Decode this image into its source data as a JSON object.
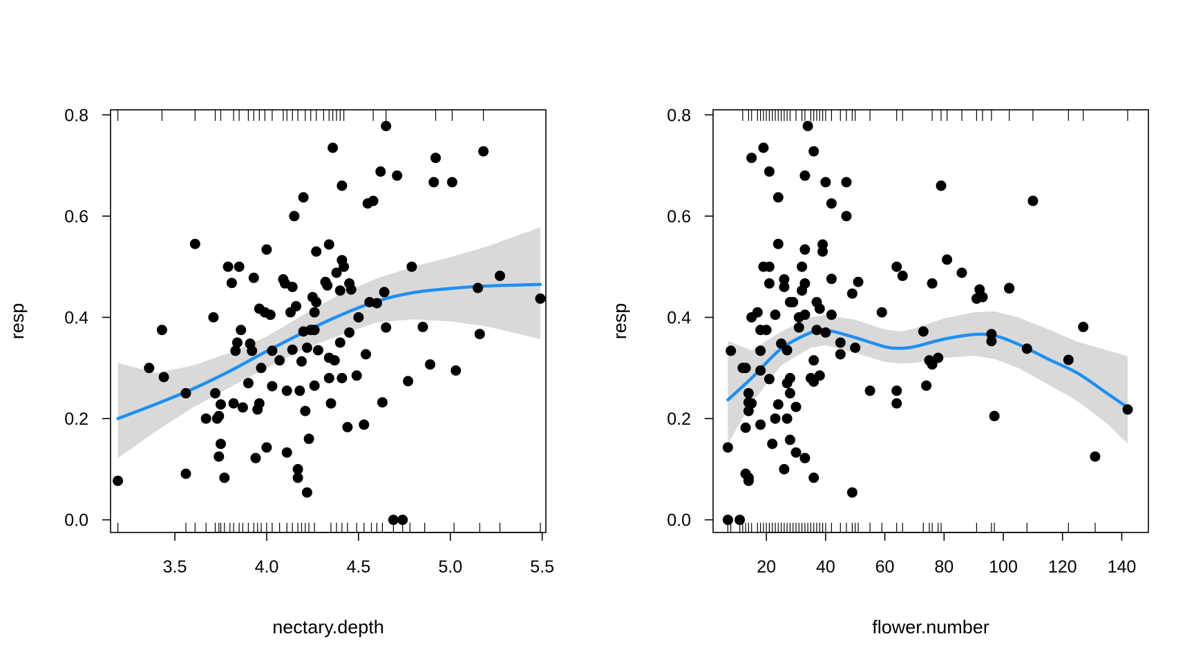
{
  "chart_data": [
    {
      "type": "scatter",
      "xlabel": "nectary.depth",
      "ylabel": "resp",
      "xlim": [
        3.15,
        5.52
      ],
      "ylim": [
        -0.025,
        0.81
      ],
      "xticks": [
        "3.5",
        "4.0",
        "4.5",
        "5.0",
        "5.5"
      ],
      "yticks": [
        "0.0",
        "0.2",
        "0.4",
        "0.6",
        "0.8"
      ],
      "grid": false,
      "legend": "none",
      "colors": {
        "points": "#000000",
        "smooth": "#1e8ff0",
        "band": "#d9d9d9"
      },
      "points": [
        [
          3.19,
          0.077
        ],
        [
          3.36,
          0.3
        ],
        [
          3.43,
          0.375
        ],
        [
          3.44,
          0.282
        ],
        [
          3.56,
          0.25
        ],
        [
          3.56,
          0.091
        ],
        [
          3.61,
          0.545
        ],
        [
          3.67,
          0.2
        ],
        [
          3.71,
          0.4
        ],
        [
          3.72,
          0.25
        ],
        [
          3.73,
          0.2
        ],
        [
          3.74,
          0.205
        ],
        [
          3.74,
          0.125
        ],
        [
          3.75,
          0.15
        ],
        [
          3.75,
          0.228
        ],
        [
          3.77,
          0.083
        ],
        [
          3.79,
          0.5
        ],
        [
          3.81,
          0.468
        ],
        [
          3.82,
          0.23
        ],
        [
          3.83,
          0.334
        ],
        [
          3.84,
          0.35
        ],
        [
          3.85,
          0.5
        ],
        [
          3.86,
          0.375
        ],
        [
          3.87,
          0.222
        ],
        [
          3.9,
          0.27
        ],
        [
          3.91,
          0.348
        ],
        [
          3.92,
          0.334
        ],
        [
          3.93,
          0.478
        ],
        [
          3.94,
          0.122
        ],
        [
          3.95,
          0.218
        ],
        [
          3.96,
          0.23
        ],
        [
          3.96,
          0.417
        ],
        [
          3.97,
          0.3
        ],
        [
          3.99,
          0.41
        ],
        [
          4.0,
          0.143
        ],
        [
          4.0,
          0.534
        ],
        [
          4.02,
          0.405
        ],
        [
          4.03,
          0.264
        ],
        [
          4.03,
          0.334
        ],
        [
          4.07,
          0.315
        ],
        [
          4.09,
          0.475
        ],
        [
          4.1,
          0.467
        ],
        [
          4.11,
          0.255
        ],
        [
          4.11,
          0.133
        ],
        [
          4.13,
          0.41
        ],
        [
          4.14,
          0.46
        ],
        [
          4.14,
          0.336
        ],
        [
          4.15,
          0.6
        ],
        [
          4.16,
          0.422
        ],
        [
          4.17,
          0.1
        ],
        [
          4.17,
          0.083
        ],
        [
          4.18,
          0.255
        ],
        [
          4.19,
          0.313
        ],
        [
          4.2,
          0.372
        ],
        [
          4.2,
          0.637
        ],
        [
          4.21,
          0.215
        ],
        [
          4.22,
          0.054
        ],
        [
          4.22,
          0.34
        ],
        [
          4.23,
          0.16
        ],
        [
          4.24,
          0.375
        ],
        [
          4.25,
          0.44
        ],
        [
          4.26,
          0.375
        ],
        [
          4.26,
          0.265
        ],
        [
          4.26,
          0.41
        ],
        [
          4.27,
          0.53
        ],
        [
          4.27,
          0.43
        ],
        [
          4.28,
          0.335
        ],
        [
          4.32,
          0.47
        ],
        [
          4.33,
          0.463
        ],
        [
          4.34,
          0.32
        ],
        [
          4.34,
          0.28
        ],
        [
          4.34,
          0.544
        ],
        [
          4.35,
          0.23
        ],
        [
          4.36,
          0.735
        ],
        [
          4.37,
          0.315
        ],
        [
          4.38,
          0.488
        ],
        [
          4.4,
          0.35
        ],
        [
          4.4,
          0.453
        ],
        [
          4.41,
          0.28
        ],
        [
          4.41,
          0.513
        ],
        [
          4.41,
          0.66
        ],
        [
          4.42,
          0.5
        ],
        [
          4.44,
          0.183
        ],
        [
          4.45,
          0.37
        ],
        [
          4.45,
          0.467
        ],
        [
          4.46,
          0.455
        ],
        [
          4.49,
          0.285
        ],
        [
          4.5,
          0.4
        ],
        [
          4.53,
          0.188
        ],
        [
          4.54,
          0.327
        ],
        [
          4.55,
          0.625
        ],
        [
          4.56,
          0.43
        ],
        [
          4.58,
          0.63
        ],
        [
          4.6,
          0.428
        ],
        [
          4.62,
          0.688
        ],
        [
          4.63,
          0.232
        ],
        [
          4.64,
          0.45
        ],
        [
          4.65,
          0.38
        ],
        [
          4.65,
          0.778
        ],
        [
          4.69,
          0.0
        ],
        [
          4.71,
          0.68
        ],
        [
          4.74,
          0.0
        ],
        [
          4.77,
          0.274
        ],
        [
          4.79,
          0.5
        ],
        [
          4.85,
          0.381
        ],
        [
          4.89,
          0.307
        ],
        [
          4.91,
          0.667
        ],
        [
          4.92,
          0.715
        ],
        [
          5.01,
          0.667
        ],
        [
          5.03,
          0.295
        ],
        [
          5.15,
          0.458
        ],
        [
          5.16,
          0.367
        ],
        [
          5.18,
          0.728
        ],
        [
          5.27,
          0.482
        ],
        [
          5.49,
          0.437
        ]
      ],
      "smooth": {
        "x": [
          3.19,
          3.4,
          3.6,
          3.8,
          4.0,
          4.2,
          4.4,
          4.6,
          4.8,
          5.0,
          5.2,
          5.49
        ],
        "y": [
          0.2,
          0.229,
          0.259,
          0.294,
          0.333,
          0.37,
          0.404,
          0.432,
          0.449,
          0.457,
          0.462,
          0.465
        ],
        "lower": [
          0.122,
          0.176,
          0.222,
          0.262,
          0.3,
          0.337,
          0.365,
          0.39,
          0.396,
          0.392,
          0.382,
          0.357
        ],
        "upper": [
          0.31,
          0.29,
          0.305,
          0.33,
          0.362,
          0.405,
          0.446,
          0.477,
          0.5,
          0.519,
          0.54,
          0.578
        ]
      },
      "rug_bottom": [
        3.19,
        3.56,
        3.61,
        3.67,
        3.72,
        3.74,
        3.75,
        3.77,
        3.8,
        3.82,
        3.85,
        3.87,
        3.9,
        3.93,
        3.95,
        3.97,
        4.0,
        4.03,
        4.07,
        4.11,
        4.14,
        4.17,
        4.19,
        4.21,
        4.23,
        4.26,
        4.35,
        4.38,
        4.41,
        4.44,
        4.49,
        4.53,
        4.57,
        4.6,
        4.63,
        4.69,
        4.74,
        4.78,
        4.86,
        5.02,
        5.16,
        5.27,
        5.49
      ],
      "rug_top": [
        3.19,
        3.43,
        3.61,
        3.72,
        3.75,
        3.82,
        3.85,
        3.9,
        3.93,
        3.96,
        3.99,
        4.03,
        4.09,
        4.11,
        4.14,
        4.17,
        4.21,
        4.24,
        4.27,
        4.31,
        4.34,
        4.36,
        4.38,
        4.4,
        4.42,
        4.58,
        4.65,
        4.92,
        5.01,
        5.18
      ]
    },
    {
      "type": "scatter",
      "xlabel": "flower.number",
      "ylabel": "resp",
      "xlim": [
        2,
        149
      ],
      "ylim": [
        -0.025,
        0.81
      ],
      "xticks": [
        "20",
        "40",
        "60",
        "80",
        "100",
        "120",
        "140"
      ],
      "yticks": [
        "0.0",
        "0.2",
        "0.4",
        "0.6",
        "0.8"
      ],
      "grid": false,
      "legend": "none",
      "colors": {
        "points": "#000000",
        "smooth": "#1e8ff0",
        "band": "#d9d9d9"
      },
      "points": [
        [
          7,
          0.143
        ],
        [
          7,
          0.0
        ],
        [
          8,
          0.334
        ],
        [
          11,
          0.0
        ],
        [
          12,
          0.3
        ],
        [
          13,
          0.3
        ],
        [
          13,
          0.182
        ],
        [
          13,
          0.091
        ],
        [
          14,
          0.083
        ],
        [
          14,
          0.077
        ],
        [
          14,
          0.215
        ],
        [
          14,
          0.232
        ],
        [
          14,
          0.25
        ],
        [
          15,
          0.715
        ],
        [
          15,
          0.4
        ],
        [
          15,
          0.23
        ],
        [
          17,
          0.41
        ],
        [
          18,
          0.295
        ],
        [
          18,
          0.188
        ],
        [
          18,
          0.334
        ],
        [
          18,
          0.375
        ],
        [
          19,
          0.735
        ],
        [
          19,
          0.5
        ],
        [
          20,
          0.375
        ],
        [
          21,
          0.5
        ],
        [
          21,
          0.467
        ],
        [
          21,
          0.278
        ],
        [
          21,
          0.688
        ],
        [
          22,
          0.15
        ],
        [
          23,
          0.405
        ],
        [
          23,
          0.2
        ],
        [
          24,
          0.545
        ],
        [
          24,
          0.637
        ],
        [
          24,
          0.228
        ],
        [
          25,
          0.348
        ],
        [
          26,
          0.475
        ],
        [
          26,
          0.46
        ],
        [
          26,
          0.1
        ],
        [
          27,
          0.27
        ],
        [
          27,
          0.2
        ],
        [
          27,
          0.335
        ],
        [
          28,
          0.28
        ],
        [
          28,
          0.25
        ],
        [
          28,
          0.43
        ],
        [
          28,
          0.158
        ],
        [
          29,
          0.43
        ],
        [
          30,
          0.133
        ],
        [
          30,
          0.223
        ],
        [
          31,
          0.4
        ],
        [
          31,
          0.38
        ],
        [
          32,
          0.5
        ],
        [
          32,
          0.453
        ],
        [
          33,
          0.467
        ],
        [
          33,
          0.534
        ],
        [
          33,
          0.68
        ],
        [
          33,
          0.122
        ],
        [
          33,
          0.405
        ],
        [
          34,
          0.778
        ],
        [
          35,
          0.28
        ],
        [
          36,
          0.273
        ],
        [
          36,
          0.315
        ],
        [
          36,
          0.728
        ],
        [
          36,
          0.083
        ],
        [
          37,
          0.43
        ],
        [
          37,
          0.375
        ],
        [
          38,
          0.285
        ],
        [
          38,
          0.417
        ],
        [
          39,
          0.544
        ],
        [
          39,
          0.53
        ],
        [
          40,
          0.667
        ],
        [
          40,
          0.37
        ],
        [
          42,
          0.625
        ],
        [
          42,
          0.476
        ],
        [
          42,
          0.405
        ],
        [
          45,
          0.35
        ],
        [
          45,
          0.327
        ],
        [
          47,
          0.6
        ],
        [
          47,
          0.667
        ],
        [
          49,
          0.447
        ],
        [
          49,
          0.054
        ],
        [
          50,
          0.34
        ],
        [
          51,
          0.47
        ],
        [
          55,
          0.255
        ],
        [
          59,
          0.41
        ],
        [
          64,
          0.5
        ],
        [
          64,
          0.255
        ],
        [
          64,
          0.23
        ],
        [
          66,
          0.482
        ],
        [
          73,
          0.372
        ],
        [
          74,
          0.265
        ],
        [
          75,
          0.315
        ],
        [
          76,
          0.307
        ],
        [
          76,
          0.467
        ],
        [
          78,
          0.32
        ],
        [
          79,
          0.66
        ],
        [
          81,
          0.514
        ],
        [
          86,
          0.488
        ],
        [
          91,
          0.437
        ],
        [
          92,
          0.455
        ],
        [
          93,
          0.44
        ],
        [
          96,
          0.353
        ],
        [
          96,
          0.367
        ],
        [
          97,
          0.205
        ],
        [
          102,
          0.458
        ],
        [
          102,
          0.457
        ],
        [
          108,
          0.338
        ],
        [
          110,
          0.63
        ],
        [
          122,
          0.316
        ],
        [
          127,
          0.381
        ],
        [
          131,
          0.125
        ],
        [
          142,
          0.218
        ]
      ],
      "smooth": {
        "x": [
          7,
          15,
          25,
          35,
          40,
          50,
          60,
          65,
          70,
          80,
          90,
          97,
          105,
          115,
          125,
          135,
          142
        ],
        "y": [
          0.237,
          0.28,
          0.338,
          0.37,
          0.375,
          0.36,
          0.342,
          0.339,
          0.342,
          0.357,
          0.366,
          0.364,
          0.347,
          0.318,
          0.29,
          0.25,
          0.222
        ],
        "lower": [
          0.15,
          0.23,
          0.305,
          0.34,
          0.345,
          0.33,
          0.312,
          0.309,
          0.31,
          0.32,
          0.324,
          0.318,
          0.3,
          0.268,
          0.235,
          0.19,
          0.15
        ],
        "upper": [
          0.353,
          0.335,
          0.372,
          0.4,
          0.405,
          0.395,
          0.376,
          0.372,
          0.378,
          0.398,
          0.41,
          0.412,
          0.4,
          0.377,
          0.352,
          0.335,
          0.323
        ]
      },
      "rug_bottom": [
        7,
        8,
        11,
        12,
        13,
        14,
        15,
        17,
        18,
        19,
        20,
        21,
        22,
        23,
        24,
        25,
        26,
        27,
        28,
        29,
        30,
        31,
        32,
        33,
        34,
        35,
        36,
        37,
        38,
        39,
        40,
        42,
        45,
        47,
        49,
        50,
        51,
        55,
        59,
        64,
        66,
        73,
        75,
        76,
        78,
        79,
        91,
        96,
        97,
        108,
        122,
        131
      ],
      "rug_top": [
        12,
        14,
        15,
        17,
        18,
        19,
        20,
        21,
        22,
        23,
        24,
        25,
        26,
        27,
        28,
        30,
        32,
        33,
        35,
        36,
        37,
        38,
        39,
        40,
        42,
        45,
        47,
        49,
        50,
        55,
        64,
        66,
        76,
        79,
        81,
        86,
        91,
        93,
        96,
        102,
        110,
        122,
        127,
        142
      ]
    }
  ]
}
